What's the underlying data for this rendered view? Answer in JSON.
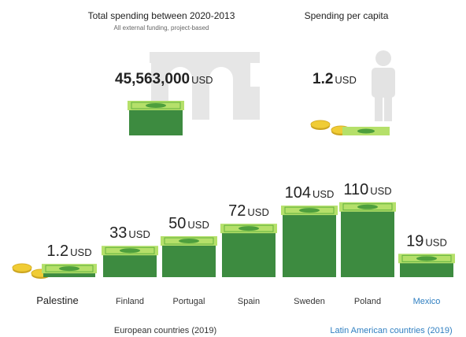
{
  "header": {
    "total": {
      "title": "Total spending between 2020-2013",
      "subtitle": "All external funding, project-based",
      "value": {
        "value": 45563000,
        "label": "45,563,000"
      },
      "unit": "USD"
    },
    "per_capita": {
      "title": "Spending per capita",
      "value": 1.2,
      "unit": "USD"
    }
  },
  "chart_data": {
    "type": "bar",
    "categories": [
      "Palestine",
      "Finland",
      "Portugal",
      "Spain",
      "Sweden",
      "Poland",
      "Mexico"
    ],
    "values": [
      1.2,
      33,
      50,
      72,
      104,
      110,
      19
    ],
    "unit": "USD",
    "color": "#3d8b40",
    "groups": [
      {
        "label": "European countries (2019)",
        "from": 1,
        "to": 5,
        "color": "#333333"
      },
      {
        "label": "Latin American countries (2019)",
        "from": 6,
        "to": 6,
        "color": "#2f7fc1"
      }
    ]
  }
}
